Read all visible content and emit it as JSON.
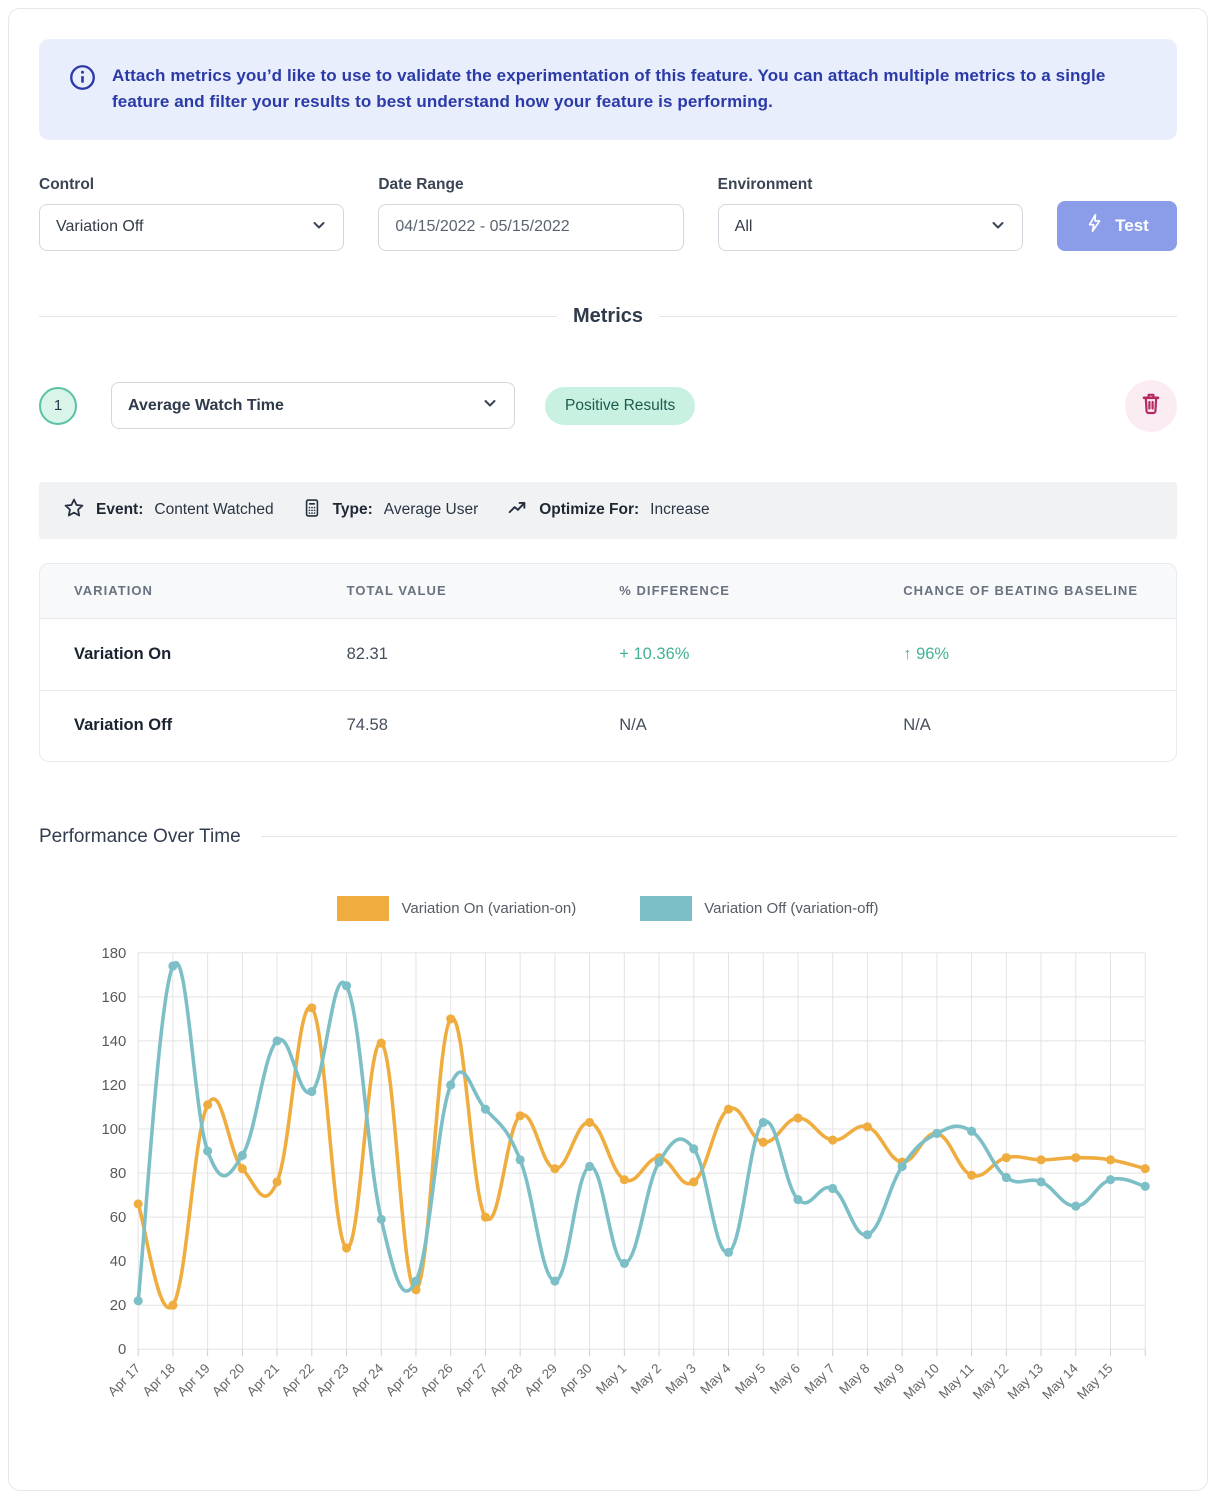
{
  "banner": {
    "icon": "info-icon",
    "text": "Attach metrics you’d like to use to validate the experimentation of this feature. You can attach multiple metrics to a single feature and filter your results to best understand how your feature is performing."
  },
  "filters": {
    "control": {
      "label": "Control",
      "value": "Variation Off"
    },
    "date_range": {
      "label": "Date Range",
      "value": "04/15/2022 - 05/15/2022"
    },
    "environment": {
      "label": "Environment",
      "value": "All"
    },
    "test_button_label": "Test"
  },
  "metrics_section": {
    "heading": "Metrics",
    "metric": {
      "index": "1",
      "name": "Average Watch Time",
      "result_badge": "Positive Results",
      "details": [
        {
          "icon": "star-icon",
          "label": "Event:",
          "value": "Content Watched"
        },
        {
          "icon": "calculator-icon",
          "label": "Type:",
          "value": "Average User"
        },
        {
          "icon": "trend-up-icon",
          "label": "Optimize For:",
          "value": "Increase"
        }
      ]
    },
    "table": {
      "headers": [
        "Variation",
        "Total Value",
        "% Difference",
        "Chance of Beating Baseline"
      ],
      "rows": [
        {
          "variation": "Variation On",
          "total": "82.31",
          "difference": "+ 10.36%",
          "chance": "↑ 96%"
        },
        {
          "variation": "Variation Off",
          "total": "74.58",
          "difference": "N/A",
          "chance": "N/A"
        }
      ]
    }
  },
  "performance": {
    "heading": "Performance Over Time"
  },
  "chart_data": {
    "type": "line",
    "title": "Performance Over Time",
    "xlabel": "",
    "ylabel": "",
    "ylim": [
      0,
      180
    ],
    "ytick_step": 20,
    "grid": true,
    "legend_position": "top",
    "categories": [
      "Apr 17",
      "Apr 18",
      "Apr 19",
      "Apr 20",
      "Apr 21",
      "Apr 22",
      "Apr 23",
      "Apr 24",
      "Apr 25",
      "Apr 26",
      "Apr 27",
      "Apr 28",
      "Apr 29",
      "Apr 30",
      "May 1",
      "May 2",
      "May 3",
      "May 4",
      "May 5",
      "May 6",
      "May 7",
      "May 8",
      "May 9",
      "May 10",
      "May 11",
      "May 12",
      "May 13",
      "May 14",
      "May 15",
      ""
    ],
    "series": [
      {
        "name": "Variation On (variation-on)",
        "color": "#F0AD3F",
        "values": [
          66,
          20,
          111,
          82,
          76,
          155,
          46,
          139,
          27,
          150,
          60,
          106,
          82,
          103,
          77,
          87,
          76,
          109,
          94,
          105,
          95,
          101,
          85,
          98,
          79,
          87,
          86,
          87,
          86,
          82
        ]
      },
      {
        "name": "Variation Off (variation-off)",
        "color": "#7CBFC6",
        "values": [
          22,
          174,
          90,
          88,
          140,
          117,
          165,
          59,
          31,
          120,
          109,
          86,
          31,
          83,
          39,
          85,
          91,
          44,
          103,
          68,
          73,
          52,
          83,
          98,
          99,
          78,
          76,
          65,
          77,
          74
        ]
      }
    ]
  },
  "theme": {
    "banner_bg": "#E8EEFB",
    "banner_text": "#2B3AA8",
    "test_button_bg": "#8B9DE9",
    "positive_green": "#43B295",
    "badge_mint_bg": "#C8F1E2",
    "badge_mint_text": "#1C5B4D",
    "trash_pink": "#B52A62",
    "series_orange": "#F0AD3F",
    "series_teal": "#7CBFC6",
    "grid_color": "#E3E3E3"
  }
}
